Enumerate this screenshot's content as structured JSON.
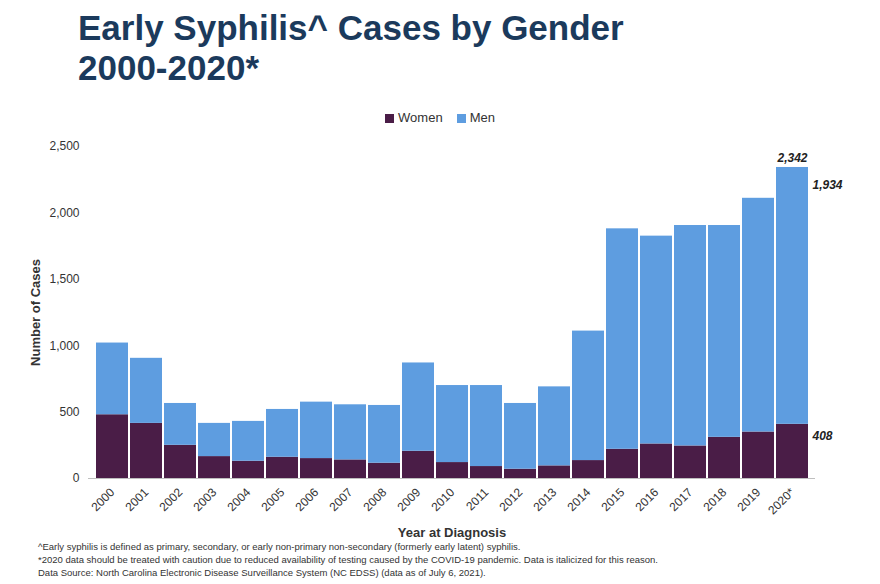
{
  "chart_data": {
    "type": "bar",
    "stacked": true,
    "title": "Early Syphilis^ Cases by Gender\n2000-2020*",
    "x_label": "Year at Diagnosis",
    "y_label": "Number of Cases",
    "categories": [
      "2000",
      "2001",
      "2002",
      "2003",
      "2004",
      "2005",
      "2006",
      "2007",
      "2008",
      "2009",
      "2010",
      "2011",
      "2012",
      "2013",
      "2014",
      "2015",
      "2016",
      "2017",
      "2018",
      "2019",
      "2020*"
    ],
    "series": [
      {
        "name": "Women",
        "color": "#4a1d47",
        "values": [
          480,
          415,
          250,
          165,
          130,
          160,
          150,
          140,
          115,
          205,
          120,
          90,
          70,
          95,
          135,
          220,
          260,
          245,
          310,
          350,
          408
        ],
        "value_labels": [
          null,
          null,
          null,
          null,
          null,
          null,
          null,
          null,
          null,
          null,
          null,
          null,
          null,
          null,
          null,
          null,
          null,
          null,
          null,
          null,
          "408"
        ]
      },
      {
        "name": "Men",
        "color": "#5e9de0",
        "values": [
          540,
          490,
          315,
          250,
          300,
          360,
          425,
          415,
          435,
          665,
          580,
          610,
          495,
          595,
          975,
          1660,
          1565,
          1660,
          1595,
          1760,
          1934
        ],
        "value_labels": [
          null,
          null,
          null,
          null,
          null,
          null,
          null,
          null,
          null,
          null,
          null,
          null,
          null,
          null,
          null,
          null,
          null,
          null,
          null,
          null,
          "1,934"
        ]
      }
    ],
    "annotations": [
      {
        "text": "2,342",
        "x": "2020*",
        "y": 2342
      }
    ],
    "data_labels": true,
    "ylim": [
      0,
      2500
    ],
    "yticks": [
      0,
      500,
      {
        "value": 1000,
        "label": "1,000"
      },
      {
        "value": 1500,
        "label": "1,500"
      },
      {
        "value": 2000,
        "label": "2,000"
      },
      {
        "value": 2500,
        "label": "2,500"
      }
    ],
    "grid": false,
    "legend": "top",
    "notes": [
      "^Early syphilis is defined as primary, secondary, or early non-primary non-secondary  (formerly early latent) syphilis.",
      "*2020 data should be treated with caution due to reduced availability of testing caused by the COVID-19 pandemic. Data is italicized for this reason.",
      "Data Source: North Carolina Electronic Disease Surveillance System (NC EDSS) (data as of July 6, 2021)."
    ]
  }
}
